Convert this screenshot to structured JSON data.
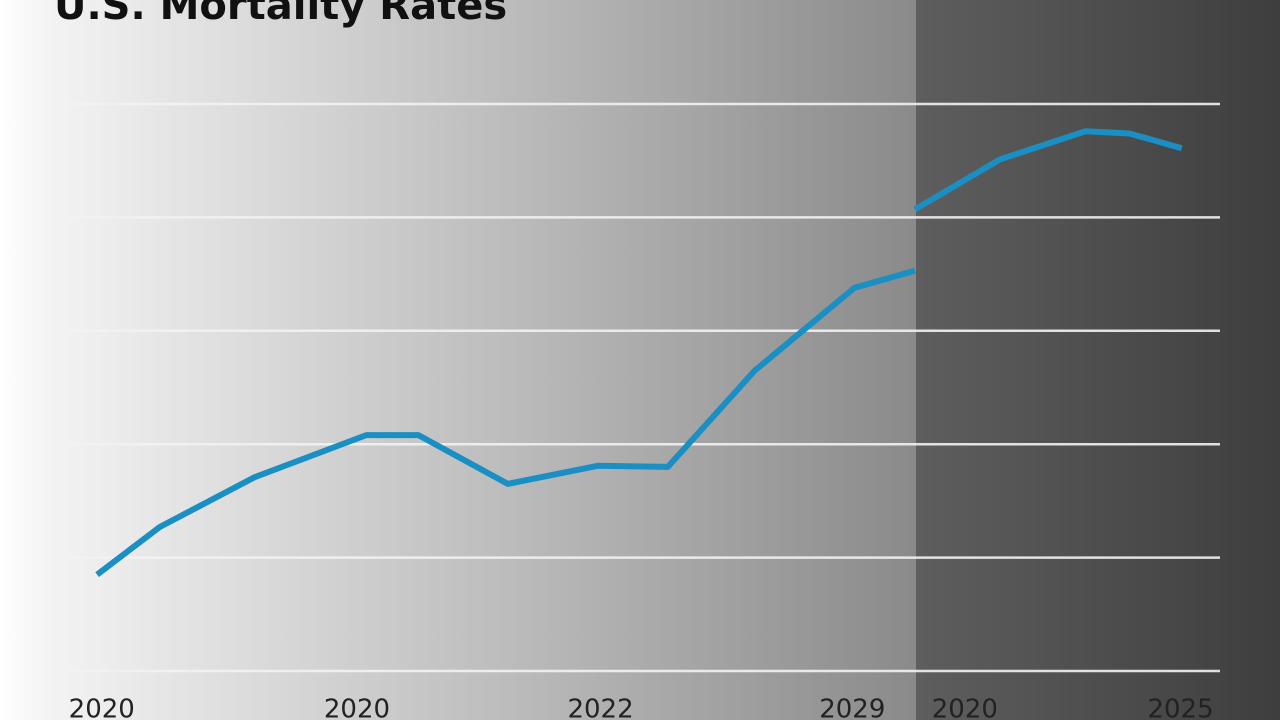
{
  "chart_data": {
    "type": "line",
    "title": "U.S. Mortality Rates",
    "x": [
      3.2,
      8.6,
      16.8,
      26.4,
      30.9,
      38.6,
      46.4,
      52.4,
      59.9,
      68.5,
      73.7,
      73.7,
      73.7,
      81,
      88.4,
      92.2,
      96.7
    ],
    "series": [
      {
        "color": "#1a8fc4",
        "values": [
          0.85,
          1.27,
          1.71,
          2.08,
          2.08,
          1.65,
          1.81,
          1.8,
          2.65,
          3.38,
          3.53,
          null,
          4.07,
          4.51,
          4.76,
          4.74,
          4.61
        ]
      }
    ],
    "xlim": [
      0,
      100
    ],
    "xticks": [
      {
        "value": 3.6,
        "label": "2020"
      },
      {
        "value": 25.6,
        "label": "2020"
      },
      {
        "value": 46.6,
        "label": "2022"
      },
      {
        "value": 68.3,
        "label": "2029"
      },
      {
        "value": 78,
        "label": "2020"
      },
      {
        "value": 96.6,
        "label": "2025"
      }
    ],
    "ylim": [
      0,
      5
    ],
    "yticks": [
      0,
      1,
      2,
      3,
      4,
      5
    ],
    "grid": true
  }
}
